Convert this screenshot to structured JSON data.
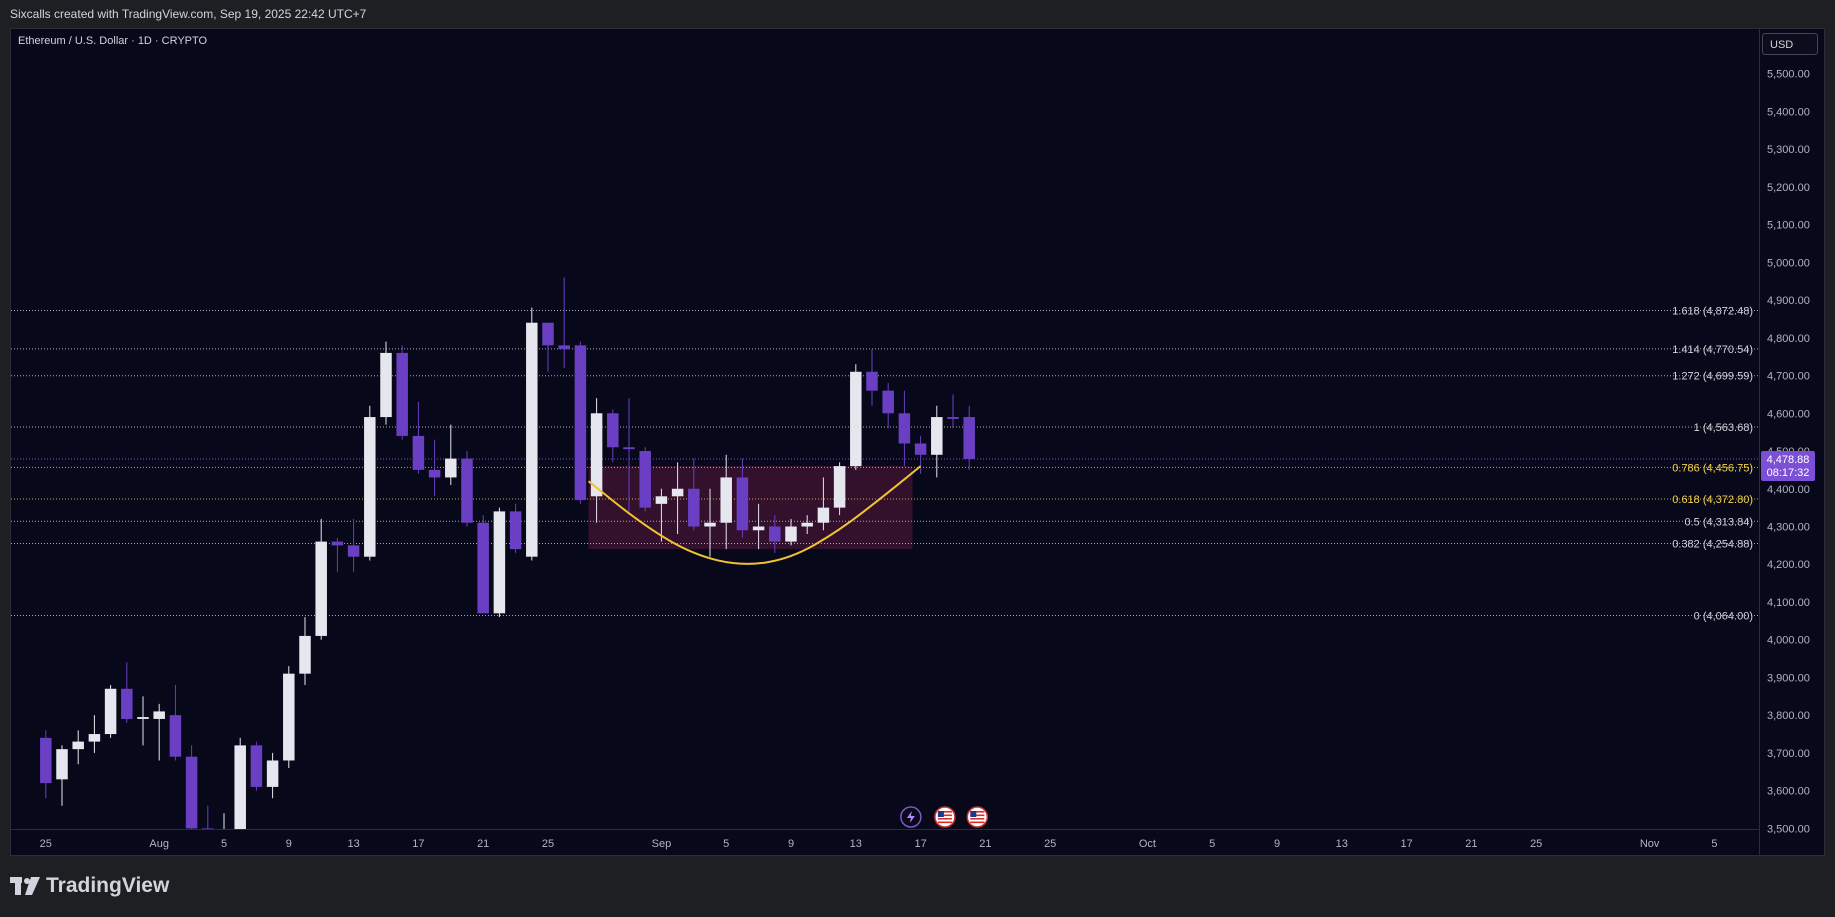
{
  "header": {
    "caption": "Sixcalls created with TradingView.com, Sep 19, 2025 22:42 UTC+7"
  },
  "symbol_title": "Ethereum / U.S. Dollar · 1D · CRYPTO",
  "currency_button": "USD",
  "footer": {
    "brand": "TradingView"
  },
  "colors": {
    "background": "#07081a",
    "bull_candle": "#e6e6ee",
    "bear_candle": "#6a3fc4",
    "fib_yellow": "#f5d547",
    "curve": "#f1c232",
    "zone_fill": "#3b1230",
    "price_tag": "#7b4fd6"
  },
  "chart_data": {
    "type": "candlestick",
    "title": "",
    "y_ticks": [
      "3,500.00",
      "3,600.00",
      "3,700.00",
      "3,800.00",
      "3,900.00",
      "4,000.00",
      "4,100.00",
      "4,200.00",
      "4,300.00",
      "4,400.00",
      "4,500.00",
      "4,600.00",
      "4,700.00",
      "4,800.00",
      "4,900.00",
      "5,000.00",
      "5,100.00",
      "5,200.00",
      "5,300.00",
      "5,400.00",
      "5,500.00"
    ],
    "y_range": [
      3500,
      5560
    ],
    "x_ticks": [
      {
        "label": "25",
        "day": 0
      },
      {
        "label": "Aug",
        "day": 7
      },
      {
        "label": "5",
        "day": 11
      },
      {
        "label": "9",
        "day": 15
      },
      {
        "label": "13",
        "day": 19
      },
      {
        "label": "17",
        "day": 23
      },
      {
        "label": "21",
        "day": 27
      },
      {
        "label": "25",
        "day": 31
      },
      {
        "label": "Sep",
        "day": 38
      },
      {
        "label": "5",
        "day": 42
      },
      {
        "label": "9",
        "day": 46
      },
      {
        "label": "13",
        "day": 50
      },
      {
        "label": "17",
        "day": 54
      },
      {
        "label": "21",
        "day": 58
      },
      {
        "label": "25",
        "day": 62
      },
      {
        "label": "Oct",
        "day": 68
      },
      {
        "label": "5",
        "day": 72
      },
      {
        "label": "9",
        "day": 76
      },
      {
        "label": "13",
        "day": 80
      },
      {
        "label": "17",
        "day": 84
      },
      {
        "label": "21",
        "day": 88
      },
      {
        "label": "25",
        "day": 92
      },
      {
        "label": "Nov",
        "day": 99
      },
      {
        "label": "5",
        "day": 103
      }
    ],
    "candles": [
      {
        "o": 3740,
        "h": 3760,
        "l": 3580,
        "c": 3620
      },
      {
        "o": 3630,
        "h": 3720,
        "l": 3560,
        "c": 3710
      },
      {
        "o": 3710,
        "h": 3760,
        "l": 3670,
        "c": 3730
      },
      {
        "o": 3730,
        "h": 3800,
        "l": 3700,
        "c": 3750
      },
      {
        "o": 3750,
        "h": 3880,
        "l": 3740,
        "c": 3870
      },
      {
        "o": 3870,
        "h": 3940,
        "l": 3780,
        "c": 3790
      },
      {
        "o": 3790,
        "h": 3850,
        "l": 3720,
        "c": 3795
      },
      {
        "o": 3790,
        "h": 3830,
        "l": 3680,
        "c": 3810
      },
      {
        "o": 3800,
        "h": 3880,
        "l": 3680,
        "c": 3690
      },
      {
        "o": 3690,
        "h": 3720,
        "l": 3480,
        "c": 3500
      },
      {
        "o": 3500,
        "h": 3560,
        "l": 3450,
        "c": 3460
      },
      {
        "o": 3460,
        "h": 3540,
        "l": 3420,
        "c": 3480
      },
      {
        "o": 3480,
        "h": 3740,
        "l": 3470,
        "c": 3720
      },
      {
        "o": 3720,
        "h": 3730,
        "l": 3600,
        "c": 3610
      },
      {
        "o": 3610,
        "h": 3700,
        "l": 3580,
        "c": 3680
      },
      {
        "o": 3680,
        "h": 3930,
        "l": 3660,
        "c": 3910
      },
      {
        "o": 3910,
        "h": 4060,
        "l": 3880,
        "c": 4010
      },
      {
        "o": 4010,
        "h": 4320,
        "l": 4000,
        "c": 4260
      },
      {
        "o": 4260,
        "h": 4270,
        "l": 4180,
        "c": 4250
      },
      {
        "o": 4250,
        "h": 4320,
        "l": 4180,
        "c": 4220
      },
      {
        "o": 4220,
        "h": 4620,
        "l": 4210,
        "c": 4590
      },
      {
        "o": 4590,
        "h": 4790,
        "l": 4570,
        "c": 4760
      },
      {
        "o": 4760,
        "h": 4780,
        "l": 4530,
        "c": 4540
      },
      {
        "o": 4540,
        "h": 4630,
        "l": 4440,
        "c": 4450
      },
      {
        "o": 4450,
        "h": 4530,
        "l": 4380,
        "c": 4430
      },
      {
        "o": 4430,
        "h": 4570,
        "l": 4410,
        "c": 4480
      },
      {
        "o": 4480,
        "h": 4500,
        "l": 4300,
        "c": 4310
      },
      {
        "o": 4310,
        "h": 4330,
        "l": 4070,
        "c": 4070
      },
      {
        "o": 4070,
        "h": 4350,
        "l": 4060,
        "c": 4340
      },
      {
        "o": 4340,
        "h": 4360,
        "l": 4230,
        "c": 4240
      },
      {
        "o": 4220,
        "h": 4880,
        "l": 4210,
        "c": 4840
      },
      {
        "o": 4840,
        "h": 4840,
        "l": 4710,
        "c": 4780
      },
      {
        "o": 4780,
        "h": 4960,
        "l": 4720,
        "c": 4770
      },
      {
        "o": 4780,
        "h": 4790,
        "l": 4360,
        "c": 4370
      },
      {
        "o": 4380,
        "h": 4640,
        "l": 4310,
        "c": 4600
      },
      {
        "o": 4600,
        "h": 4610,
        "l": 4470,
        "c": 4510
      },
      {
        "o": 4510,
        "h": 4640,
        "l": 4340,
        "c": 4505
      },
      {
        "o": 4500,
        "h": 4510,
        "l": 4340,
        "c": 4350
      },
      {
        "o": 4360,
        "h": 4400,
        "l": 4260,
        "c": 4380
      },
      {
        "o": 4380,
        "h": 4470,
        "l": 4280,
        "c": 4400
      },
      {
        "o": 4400,
        "h": 4480,
        "l": 4290,
        "c": 4300
      },
      {
        "o": 4300,
        "h": 4400,
        "l": 4220,
        "c": 4310
      },
      {
        "o": 4310,
        "h": 4490,
        "l": 4240,
        "c": 4430
      },
      {
        "o": 4430,
        "h": 4480,
        "l": 4270,
        "c": 4290
      },
      {
        "o": 4290,
        "h": 4360,
        "l": 4240,
        "c": 4300
      },
      {
        "o": 4300,
        "h": 4330,
        "l": 4230,
        "c": 4260
      },
      {
        "o": 4260,
        "h": 4320,
        "l": 4250,
        "c": 4300
      },
      {
        "o": 4300,
        "h": 4330,
        "l": 4280,
        "c": 4310
      },
      {
        "o": 4310,
        "h": 4430,
        "l": 4290,
        "c": 4350
      },
      {
        "o": 4350,
        "h": 4470,
        "l": 4330,
        "c": 4460
      },
      {
        "o": 4460,
        "h": 4730,
        "l": 4450,
        "c": 4710
      },
      {
        "o": 4710,
        "h": 4770,
        "l": 4620,
        "c": 4660
      },
      {
        "o": 4660,
        "h": 4680,
        "l": 4560,
        "c": 4600
      },
      {
        "o": 4600,
        "h": 4660,
        "l": 4460,
        "c": 4520
      },
      {
        "o": 4520,
        "h": 4540,
        "l": 4440,
        "c": 4490
      },
      {
        "o": 4490,
        "h": 4620,
        "l": 4430,
        "c": 4590
      },
      {
        "o": 4590,
        "h": 4650,
        "l": 4560,
        "c": 4585
      },
      {
        "o": 4590,
        "h": 4620,
        "l": 4450,
        "c": 4478.88
      }
    ],
    "fib_levels": [
      {
        "ratio": "1.618",
        "label": "1.618 (4,872.48)",
        "price": 4872.48,
        "color": "#d1d4dc"
      },
      {
        "ratio": "1.414",
        "label": "1.414 (4,770.54)",
        "price": 4770.54,
        "color": "#d1d4dc"
      },
      {
        "ratio": "1.272",
        "label": "1.272 (4,699.59)",
        "price": 4699.59,
        "color": "#d1d4dc"
      },
      {
        "ratio": "1",
        "label": "1 (4,563.68)",
        "price": 4563.68,
        "color": "#d1d4dc"
      },
      {
        "ratio": "0.786",
        "label": "0.786 (4,456.75)",
        "price": 4456.75,
        "color": "#f5d547"
      },
      {
        "ratio": "0.618",
        "label": "0.618 (4,372.80)",
        "price": 4372.8,
        "color": "#f5d547"
      },
      {
        "ratio": "0.5",
        "label": "0.5 (4,313.84)",
        "price": 4313.84,
        "color": "#d1d4dc"
      },
      {
        "ratio": "0.382",
        "label": "0.382 (4,254.88)",
        "price": 4254.88,
        "color": "#d1d4dc"
      },
      {
        "ratio": "0",
        "label": "0 (4,064.00)",
        "price": 4064.0,
        "color": "#d1d4dc"
      }
    ],
    "current_price": {
      "label": "4,478.88",
      "price": 4478.88,
      "countdown": "08:17:32"
    },
    "annotations": {
      "zone": {
        "start_day": 33.5,
        "end_day": 53.5,
        "top": 4460,
        "bottom": 4240
      },
      "cup_curve": [
        {
          "day": 33.5,
          "price": 4420
        },
        {
          "day": 37,
          "price": 4300
        },
        {
          "day": 40,
          "price": 4225
        },
        {
          "day": 43,
          "price": 4195
        },
        {
          "day": 46,
          "price": 4215
        },
        {
          "day": 49,
          "price": 4290
        },
        {
          "day": 52,
          "price": 4390
        },
        {
          "day": 54,
          "price": 4460
        }
      ],
      "event_icons": [
        {
          "day": 53.4,
          "kind": "lightning"
        },
        {
          "day": 55.5,
          "kind": "us-flag"
        },
        {
          "day": 57.5,
          "kind": "us-flag"
        }
      ]
    }
  }
}
